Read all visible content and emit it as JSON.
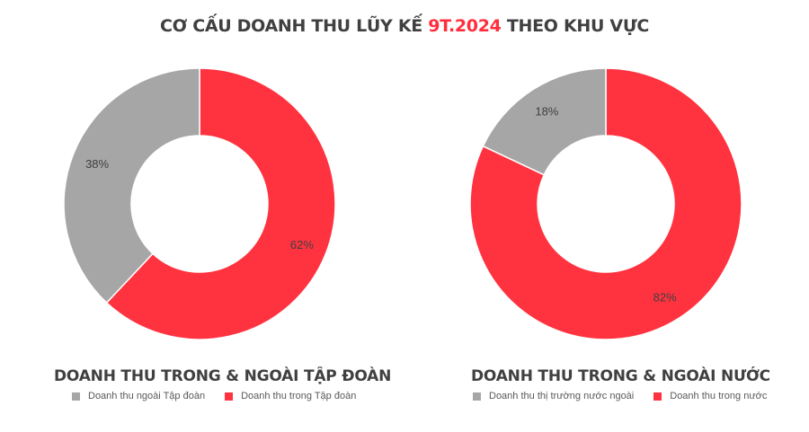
{
  "title": {
    "prefix": "CƠ CẤU DOANH THU LŨY KẾ ",
    "highlight": "9T.2024",
    "suffix": " THEO KHU VỰC"
  },
  "colors": {
    "accent": "#ff2e3d",
    "grey": "#a6a6a6"
  },
  "chart_data": [
    {
      "type": "pie",
      "donut": true,
      "title": "DOANH THU TRONG & NGOÀI TẬP ĐOÀN",
      "series": [
        {
          "name": "Doanh thu ngoài Tập đoàn",
          "value": 38,
          "label": "38%",
          "color": "#a6a6a6"
        },
        {
          "name": "Doanh thu trong Tập đoàn",
          "value": 62,
          "label": "62%",
          "color": "#ff3340"
        }
      ],
      "legend": "bottom-left"
    },
    {
      "type": "pie",
      "donut": true,
      "title": "DOANH THU TRONG & NGOÀI NƯỚC",
      "series": [
        {
          "name": "Doanh thu thị trường nước ngoài",
          "value": 18,
          "label": "18%",
          "color": "#a6a6a6"
        },
        {
          "name": "Doanh thu trong nước",
          "value": 82,
          "label": "82%",
          "color": "#ff3340"
        }
      ],
      "legend": "bottom-left"
    }
  ]
}
